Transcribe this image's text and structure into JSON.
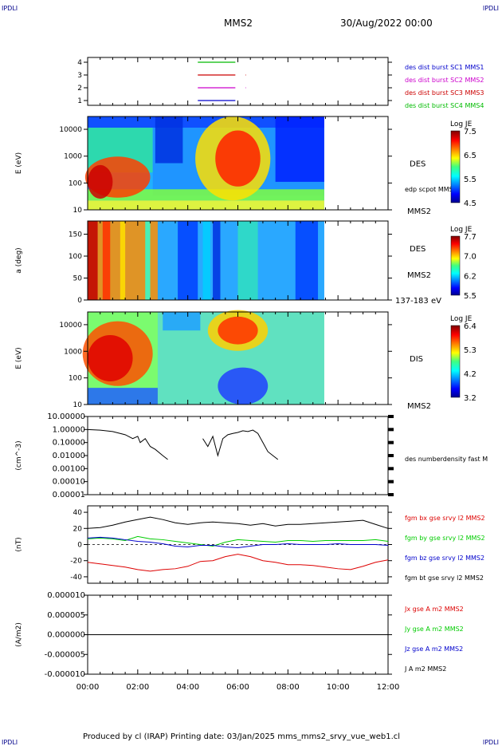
{
  "header": {
    "corner_left": "IPDLI",
    "corner_right": "IPDLI",
    "spacecraft": "MMS2",
    "date": "30/Aug/2022 00:00",
    "corner_bottom_left": "IPDLI",
    "corner_bottom_right": "IPDLI"
  },
  "footer": {
    "text": "Produced by cl (IRAP)   Printing date: 03/Jan/2025   mms_mms2_srvy_vue_web1.cl"
  },
  "time_axis": {
    "labels": [
      "00:00",
      "02:00",
      "04:00",
      "06:00",
      "08:00",
      "10:00",
      "12:00"
    ]
  },
  "colors": {
    "mms1": "#0000cc",
    "mms2": "#cc00cc",
    "mms3": "#cc0000",
    "mms4": "#00bb00",
    "bx": "#dd0000",
    "by": "#00cc00",
    "bz": "#0000cc",
    "bt": "#000000"
  },
  "chart_data": [
    {
      "type": "line",
      "panel": "burst_availability",
      "y_ticks": [
        "1",
        "2",
        "3",
        "4"
      ],
      "legend": [
        "des dist burst SC1 MMS1",
        "des dist burst SC2 MMS2",
        "des dist burst SC3 MMS3",
        "des dist burst SC4 MMS4"
      ],
      "series": [
        {
          "name": "des dist burst SC4 MMS4",
          "level": 4,
          "segments": [
            [
              4.4,
              5.9
            ]
          ]
        },
        {
          "name": "des dist burst SC3 MMS3",
          "level": 3,
          "segments": [
            [
              4.4,
              5.9
            ],
            [
              6.3,
              6.32
            ]
          ]
        },
        {
          "name": "des dist burst SC2 MMS2",
          "level": 2,
          "segments": [
            [
              4.4,
              5.9
            ],
            [
              6.3,
              6.32
            ]
          ]
        },
        {
          "name": "des dist burst SC1 MMS1",
          "level": 1,
          "segments": [
            [
              4.4,
              5.9
            ]
          ]
        }
      ],
      "xlim": [
        0,
        12
      ]
    },
    {
      "type": "heatmap",
      "panel": "des_energy",
      "ylabel": "E (eV)",
      "y_ticks": [
        "10",
        "100",
        "1000",
        "10000"
      ],
      "ylim": [
        10,
        30000
      ],
      "yscale": "log",
      "label": "DES",
      "overlay": "edp scpot MMS2",
      "spacecraft_label": "MMS2",
      "colorbar": {
        "title": "Log JE",
        "ticks": [
          "7.5",
          "6.5",
          "5.5",
          "4.5"
        ]
      }
    },
    {
      "type": "heatmap",
      "panel": "des_pitch",
      "ylabel": "a (deg)",
      "y_ticks": [
        "0",
        "50",
        "100",
        "150"
      ],
      "ylim": [
        0,
        180
      ],
      "label": "DES",
      "spacecraft_label": "MMS2",
      "energy_label": "137-183 eV",
      "colorbar": {
        "title": "Log JE",
        "ticks": [
          "7.7",
          "7.0",
          "6.2",
          "5.5"
        ]
      }
    },
    {
      "type": "heatmap",
      "panel": "dis_energy",
      "ylabel": "E (eV)",
      "y_ticks": [
        "10",
        "100",
        "1000",
        "10000"
      ],
      "ylim": [
        10,
        30000
      ],
      "yscale": "log",
      "label": "DIS",
      "spacecraft_label": "MMS2",
      "colorbar": {
        "title": "Log JE",
        "ticks": [
          "6.4",
          "5.3",
          "4.2",
          "3.2"
        ]
      }
    },
    {
      "type": "line",
      "panel": "number_density",
      "ylabel": "(cm^-3)",
      "yscale": "log",
      "y_ticks": [
        "10.00000",
        "1.00000",
        "0.10000",
        "0.01000",
        "0.00100",
        "0.00010",
        "0.00001"
      ],
      "ylim": [
        1e-05,
        10
      ],
      "series": [
        {
          "name": "des numberdensity fast M",
          "x": [
            0.0,
            0.5,
            1.0,
            1.5,
            1.8,
            2.0,
            2.1,
            2.3,
            2.5,
            2.7,
            3.0,
            3.2
          ],
          "y": [
            1.0,
            0.9,
            0.7,
            0.4,
            0.2,
            0.3,
            0.1,
            0.2,
            0.05,
            0.03,
            0.01,
            0.005
          ]
        },
        {
          "name": "des numberdensity fast M (2)",
          "x": [
            4.6,
            4.8,
            5.0,
            5.2,
            5.4,
            5.6,
            5.8,
            6.0,
            6.2,
            6.4,
            6.6,
            6.8,
            7.0,
            7.2,
            7.4,
            7.6
          ],
          "y": [
            0.2,
            0.05,
            0.3,
            0.01,
            0.2,
            0.4,
            0.5,
            0.6,
            0.8,
            0.7,
            0.9,
            0.5,
            0.1,
            0.02,
            0.01,
            0.005
          ]
        }
      ],
      "legend": [
        "des numberdensity fast M"
      ],
      "xlim": [
        0,
        12
      ]
    },
    {
      "type": "line",
      "panel": "magnetic_field",
      "ylabel": "(nT)",
      "y_ticks": [
        "40",
        "20",
        "0",
        "-20",
        "-40"
      ],
      "ylim": [
        -48,
        48
      ],
      "legend": [
        "fgm bx gse srvy l2 MMS2",
        "fgm by gse srvy l2 MMS2",
        "fgm bz gse srvy l2 MMS2",
        "fgm bt gse srvy l2 MMS2"
      ],
      "series": [
        {
          "name": "fgm bt gse srvy l2 MMS2",
          "x": [
            0,
            0.5,
            1,
            1.5,
            2,
            2.5,
            3,
            3.5,
            4,
            4.5,
            5,
            5.5,
            6,
            6.5,
            7,
            7.5,
            8,
            8.5,
            9,
            9.5,
            10,
            10.5,
            11,
            11.5,
            12
          ],
          "y": [
            20,
            21,
            24,
            28,
            31,
            34,
            31,
            27,
            25,
            27,
            28,
            27,
            26,
            24,
            26,
            23,
            25,
            25,
            26,
            27,
            28,
            29,
            30,
            25,
            20
          ]
        },
        {
          "name": "fgm by gse srvy l2 MMS2",
          "x": [
            0,
            0.5,
            1,
            1.5,
            2,
            2.5,
            3,
            3.5,
            4,
            4.5,
            5,
            5.5,
            6,
            6.5,
            7,
            7.5,
            8,
            8.5,
            9,
            9.5,
            10,
            10.5,
            11,
            11.5,
            12
          ],
          "y": [
            7,
            8,
            7,
            5,
            10,
            7,
            6,
            4,
            2,
            0,
            -2,
            3,
            6,
            5,
            4,
            3,
            5,
            5,
            4,
            5,
            5,
            5,
            5,
            6,
            4
          ]
        },
        {
          "name": "fgm bz gse srvy l2 MMS2",
          "x": [
            0,
            0.5,
            1,
            1.5,
            2,
            2.5,
            3,
            3.5,
            4,
            4.5,
            5,
            5.5,
            6,
            6.5,
            7,
            7.5,
            8,
            8.5,
            9,
            9.5,
            10,
            10.5,
            11,
            11.5,
            12
          ],
          "y": [
            8,
            9,
            8,
            6,
            4,
            3,
            1,
            -2,
            -3,
            -1,
            -1,
            -3,
            -4,
            -2,
            0,
            0,
            1,
            0,
            0,
            0,
            1,
            0,
            0,
            0,
            -1
          ]
        },
        {
          "name": "fgm bx gse srvy l2 MMS2",
          "x": [
            0,
            0.5,
            1,
            1.5,
            2,
            2.5,
            3,
            3.5,
            4,
            4.5,
            5,
            5.5,
            6,
            6.5,
            7,
            7.5,
            8,
            8.5,
            9,
            9.5,
            10,
            10.5,
            11,
            11.5,
            12
          ],
          "y": [
            -22,
            -24,
            -26,
            -28,
            -31,
            -33,
            -31,
            -30,
            -27,
            -21,
            -20,
            -15,
            -12,
            -15,
            -20,
            -22,
            -25,
            -25,
            -26,
            -28,
            -30,
            -31,
            -27,
            -22,
            -19
          ]
        }
      ],
      "xlim": [
        0,
        12
      ]
    },
    {
      "type": "line",
      "panel": "current_density",
      "ylabel": "(A/m2)",
      "y_ticks": [
        "0.000010",
        "0.000005",
        "0.000000",
        "-0.000005",
        "-0.000010"
      ],
      "ylim": [
        -1e-05,
        1e-05
      ],
      "legend": [
        "Jx gse A m2 MMS2",
        "Jy gse A m2 MMS2",
        "Jz gse A m2 MMS2",
        "J A m2 MMS2"
      ],
      "series": [
        {
          "name": "J A m2 MMS2",
          "x": [
            0,
            12
          ],
          "y": [
            0,
            0
          ]
        }
      ],
      "xlim": [
        0,
        12
      ]
    }
  ]
}
